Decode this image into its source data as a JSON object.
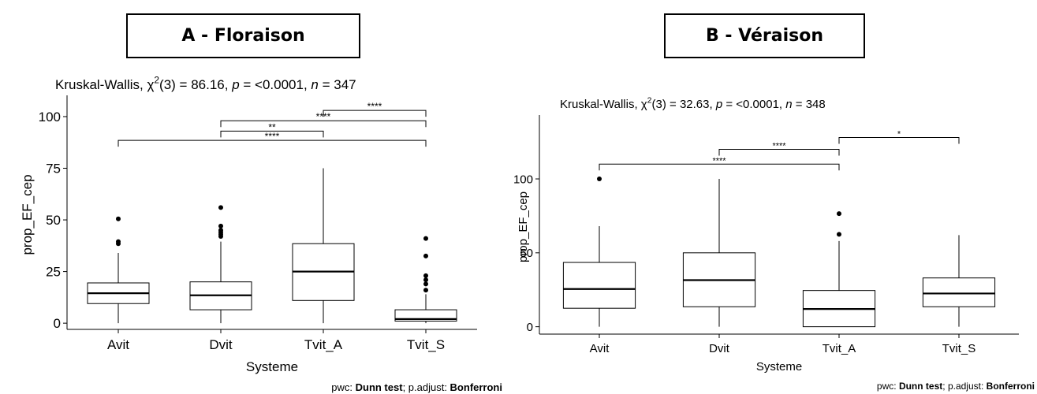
{
  "chart_data": [
    {
      "type": "box",
      "panel_title": "A - Floraison",
      "test_prefix": "Kruskal-Wallis, ",
      "chi_symbol": "χ",
      "chi_sup": "2",
      "chi_df": "(3) = 86.16, ",
      "p_label": "p",
      "p_value": " = <0.0001, ",
      "n_label": "n",
      "n_value": " = 347",
      "xlabel": "Systeme",
      "ylabel": "prop_EF_cep",
      "categories": [
        "Avit",
        "Dvit",
        "Tvit_A",
        "Tvit_S"
      ],
      "yticks": [
        0,
        25,
        50,
        75,
        100
      ],
      "ylim": [
        -3,
        108
      ],
      "boxes": [
        {
          "min": 0,
          "q1": 9.5,
          "median": 14.5,
          "q3": 19.5,
          "max": 34,
          "outliers": [
            38.5,
            39.5,
            50.5
          ]
        },
        {
          "min": 0,
          "q1": 6.5,
          "median": 13.5,
          "q3": 20,
          "max": 39.5,
          "outliers": [
            42,
            43,
            44,
            45,
            47,
            56
          ]
        },
        {
          "min": 0,
          "q1": 11,
          "median": 25,
          "q3": 38.5,
          "max": 75,
          "outliers": []
        },
        {
          "min": 0,
          "q1": 1,
          "median": 2,
          "q3": 6.5,
          "max": 14,
          "outliers": [
            16,
            19,
            21,
            23,
            32.5,
            41
          ]
        }
      ],
      "brackets": [
        {
          "from": "Tvit_A",
          "to": "Tvit_S",
          "level": 103,
          "label": "****"
        },
        {
          "from": "Dvit",
          "to": "Tvit_S",
          "level": 98,
          "label": "****"
        },
        {
          "from": "Dvit",
          "to": "Tvit_A",
          "level": 93,
          "label": "**"
        },
        {
          "from": "Avit",
          "to": "Tvit_S",
          "level": 88.5,
          "label": "****"
        }
      ],
      "footnote_pwc": "pwc: ",
      "footnote_test": "Dunn test",
      "footnote_adj": "; p.adjust: ",
      "footnote_method": "Bonferroni"
    },
    {
      "type": "box",
      "panel_title": "B - Véraison",
      "test_prefix": "Kruskal-Wallis, ",
      "chi_symbol": "χ",
      "chi_sup": "2",
      "chi_df": "(3) = 32.63, ",
      "p_label": "p",
      "p_value": " = <0.0001, ",
      "n_label": "n",
      "n_value": " = 348",
      "xlabel": "Systeme",
      "ylabel": "prop_EF_cep",
      "categories": [
        "Avit",
        "Dvit",
        "Tvit_A",
        "Tvit_S"
      ],
      "yticks": [
        0,
        50,
        100
      ],
      "ylim": [
        -5,
        140
      ],
      "boxes": [
        {
          "min": 0,
          "q1": 12.5,
          "median": 25.5,
          "q3": 43.5,
          "max": 68,
          "outliers": [
            100
          ]
        },
        {
          "min": 0,
          "q1": 13.5,
          "median": 31.5,
          "q3": 50,
          "max": 100,
          "outliers": []
        },
        {
          "min": 0,
          "q1": 0,
          "median": 12,
          "q3": 24.5,
          "max": 58,
          "outliers": [
            62.5,
            76.5
          ]
        },
        {
          "min": 0,
          "q1": 13.5,
          "median": 22.5,
          "q3": 33,
          "max": 62,
          "outliers": []
        }
      ],
      "brackets": [
        {
          "from": "Tvit_A",
          "to": "Tvit_S",
          "level": 128,
          "label": "*"
        },
        {
          "from": "Dvit",
          "to": "Tvit_A",
          "level": 120,
          "label": "****"
        },
        {
          "from": "Avit",
          "to": "Tvit_A",
          "level": 110,
          "label": "****"
        }
      ],
      "footnote_pwc": "pwc: ",
      "footnote_test": "Dunn test",
      "footnote_adj": "; p.adjust: ",
      "footnote_method": "Bonferroni"
    }
  ]
}
